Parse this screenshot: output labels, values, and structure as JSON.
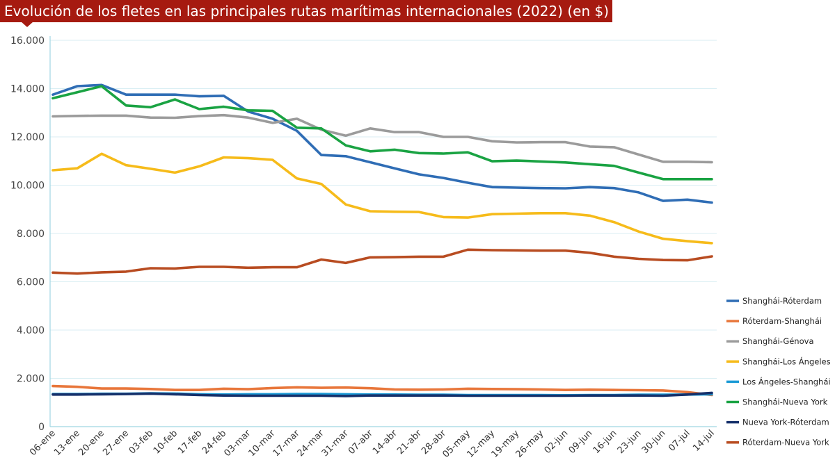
{
  "chart_data": {
    "type": "line",
    "title": "Evolución de los fletes en las principales rutas marítimas internacionales (2022) (en $)",
    "xlabel": "",
    "ylabel": "",
    "ylim": [
      0,
      16000
    ],
    "yticks": [
      0,
      2000,
      4000,
      6000,
      8000,
      10000,
      12000,
      14000,
      16000
    ],
    "ytick_labels": [
      "0",
      "2.000",
      "4.000",
      "6.000",
      "8.000",
      "10.000",
      "12.000",
      "14.000",
      "16.000"
    ],
    "grid": true,
    "legend_position": "right",
    "categories": [
      "06-ene",
      "13-ene",
      "20-ene",
      "27-ene",
      "03-feb",
      "10-feb",
      "17-feb",
      "24-feb",
      "03-mar",
      "10-mar",
      "17-mar",
      "24-mar",
      "31-mar",
      "07-abr",
      "14-abr",
      "21-abr",
      "28-abr",
      "05-may",
      "12-may",
      "19-may",
      "26-may",
      "02-jun",
      "09-jun",
      "16-jun",
      "23-jun",
      "30-jun",
      "07-jul",
      "14-jul"
    ],
    "series": [
      {
        "name": "Shanghái-Róterdam",
        "color": "#2f6db5",
        "values": [
          13750,
          14100,
          14150,
          13750,
          13750,
          13750,
          13680,
          13700,
          13050,
          12750,
          12250,
          11250,
          11200,
          10950,
          10700,
          10450,
          10300,
          10100,
          9920,
          9900,
          9880,
          9870,
          9920,
          9880,
          9700,
          9350,
          9400,
          9280
        ]
      },
      {
        "name": "Róterdam-Shanghái",
        "color": "#e8763a",
        "values": [
          1680,
          1650,
          1580,
          1580,
          1560,
          1520,
          1520,
          1570,
          1550,
          1600,
          1630,
          1610,
          1620,
          1590,
          1540,
          1530,
          1540,
          1570,
          1560,
          1550,
          1540,
          1520,
          1530,
          1520,
          1510,
          1500,
          1430,
          1310
        ]
      },
      {
        "name": "Shanghái-Génova",
        "color": "#9b9b9b",
        "values": [
          12850,
          12870,
          12880,
          12880,
          12800,
          12790,
          12860,
          12900,
          12800,
          12580,
          12750,
          12300,
          12050,
          12350,
          12200,
          12200,
          12000,
          12000,
          11820,
          11770,
          11780,
          11780,
          11600,
          11570,
          11270,
          10970,
          10970,
          10950
        ]
      },
      {
        "name": "Shanghái-Los Ángeles",
        "color": "#f6bb1a",
        "values": [
          10620,
          10700,
          11300,
          10830,
          10680,
          10520,
          10780,
          11150,
          11120,
          11050,
          10280,
          10050,
          9200,
          8920,
          8900,
          8890,
          8680,
          8660,
          8800,
          8820,
          8840,
          8840,
          8740,
          8470,
          8080,
          7780,
          7680,
          7600
        ]
      },
      {
        "name": "Los Ángeles-Shanghái",
        "color": "#1a9ad6",
        "values": [
          1350,
          1350,
          1360,
          1360,
          1380,
          1370,
          1340,
          1330,
          1340,
          1340,
          1350,
          1350,
          1340,
          1330,
          1330,
          1320,
          1320,
          1310,
          1310,
          1310,
          1310,
          1300,
          1310,
          1310,
          1320,
          1320,
          1330,
          1340
        ]
      },
      {
        "name": "Shanghái-Nueva York",
        "color": "#1aa343",
        "values": [
          13600,
          13850,
          14100,
          13300,
          13230,
          13550,
          13150,
          13250,
          13100,
          13080,
          12380,
          12350,
          11650,
          11400,
          11470,
          11330,
          11310,
          11360,
          10990,
          11020,
          10980,
          10940,
          10870,
          10800,
          10520,
          10250,
          10250,
          10250
        ]
      },
      {
        "name": "Nueva York-Róterdam",
        "color": "#16316b",
        "values": [
          1330,
          1330,
          1340,
          1350,
          1370,
          1340,
          1310,
          1290,
          1280,
          1280,
          1280,
          1280,
          1270,
          1290,
          1290,
          1290,
          1290,
          1280,
          1280,
          1280,
          1280,
          1280,
          1290,
          1290,
          1290,
          1280,
          1330,
          1400
        ]
      },
      {
        "name": "Róterdam-Nueva York",
        "color": "#b84c21",
        "values": [
          6380,
          6340,
          6390,
          6420,
          6560,
          6550,
          6620,
          6620,
          6580,
          6600,
          6600,
          6920,
          6780,
          7010,
          7020,
          7040,
          7040,
          7330,
          7310,
          7300,
          7290,
          7290,
          7200,
          7040,
          6950,
          6900,
          6890,
          7050
        ]
      }
    ]
  }
}
